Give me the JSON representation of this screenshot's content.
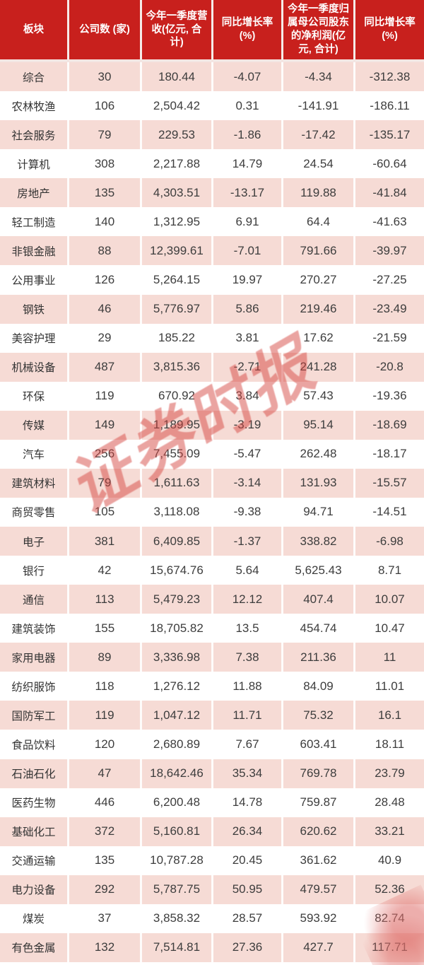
{
  "chart_data": {
    "type": "table",
    "title": "",
    "columns": [
      "板块",
      "公司数 (家)",
      "今年一季度营收(亿元, 合计)",
      "同比增长率(%)",
      "今年一季度归属母公司股东的净利润(亿元, 合计)",
      "同比增长率(%)"
    ],
    "rows": [
      [
        "综合",
        "30",
        "180.44",
        "-4.07",
        "-4.34",
        "-312.38"
      ],
      [
        "农林牧渔",
        "106",
        "2,504.42",
        "0.31",
        "-141.91",
        "-186.11"
      ],
      [
        "社会服务",
        "79",
        "229.53",
        "-1.86",
        "-17.42",
        "-135.17"
      ],
      [
        "计算机",
        "308",
        "2,217.88",
        "14.79",
        "24.54",
        "-60.64"
      ],
      [
        "房地产",
        "135",
        "4,303.51",
        "-13.17",
        "119.88",
        "-41.84"
      ],
      [
        "轻工制造",
        "140",
        "1,312.95",
        "6.91",
        "64.4",
        "-41.63"
      ],
      [
        "非银金融",
        "88",
        "12,399.61",
        "-7.01",
        "791.66",
        "-39.97"
      ],
      [
        "公用事业",
        "126",
        "5,264.15",
        "19.97",
        "270.27",
        "-27.25"
      ],
      [
        "钢铁",
        "46",
        "5,776.97",
        "5.86",
        "219.46",
        "-23.49"
      ],
      [
        "美容护理",
        "29",
        "185.22",
        "3.81",
        "17.62",
        "-21.59"
      ],
      [
        "机械设备",
        "487",
        "3,815.36",
        "-2.71",
        "241.28",
        "-20.8"
      ],
      [
        "环保",
        "119",
        "670.92",
        "3.84",
        "57.43",
        "-19.36"
      ],
      [
        "传媒",
        "149",
        "1,189.95",
        "-3.19",
        "95.14",
        "-18.69"
      ],
      [
        "汽车",
        "256",
        "7,455.09",
        "-5.47",
        "262.48",
        "-18.17"
      ],
      [
        "建筑材料",
        "79",
        "1,611.63",
        "-3.14",
        "131.93",
        "-15.57"
      ],
      [
        "商贸零售",
        "105",
        "3,118.08",
        "-9.38",
        "94.71",
        "-14.51"
      ],
      [
        "电子",
        "381",
        "6,409.85",
        "-1.37",
        "338.82",
        "-6.98"
      ],
      [
        "银行",
        "42",
        "15,674.76",
        "5.64",
        "5,625.43",
        "8.71"
      ],
      [
        "通信",
        "113",
        "5,479.23",
        "12.12",
        "407.4",
        "10.07"
      ],
      [
        "建筑装饰",
        "155",
        "18,705.82",
        "13.5",
        "454.74",
        "10.47"
      ],
      [
        "家用电器",
        "89",
        "3,336.98",
        "7.38",
        "211.36",
        "11"
      ],
      [
        "纺织服饰",
        "118",
        "1,276.12",
        "11.88",
        "84.09",
        "11.01"
      ],
      [
        "国防军工",
        "119",
        "1,047.12",
        "11.71",
        "75.32",
        "16.1"
      ],
      [
        "食品饮料",
        "120",
        "2,680.89",
        "7.67",
        "603.41",
        "18.11"
      ],
      [
        "石油石化",
        "47",
        "18,642.46",
        "35.34",
        "769.78",
        "23.79"
      ],
      [
        "医药生物",
        "446",
        "6,200.48",
        "14.78",
        "759.87",
        "28.48"
      ],
      [
        "基础化工",
        "372",
        "5,160.81",
        "26.34",
        "620.62",
        "33.21"
      ],
      [
        "交通运输",
        "135",
        "10,787.28",
        "20.45",
        "361.62",
        "40.9"
      ],
      [
        "电力设备",
        "292",
        "5,787.75",
        "50.95",
        "479.57",
        "52.36"
      ],
      [
        "煤炭",
        "37",
        "3,858.32",
        "28.57",
        "593.92",
        "82.74"
      ],
      [
        "有色金属",
        "132",
        "7,514.81",
        "27.36",
        "427.7",
        "117.71"
      ]
    ],
    "layout_hints": {
      "header_rows": 1,
      "alternating_row_shading": true,
      "first_shaded_row_index": 0
    }
  },
  "watermark": {
    "text": "证券时报"
  },
  "colors": {
    "header_bg": "#c8201d",
    "header_text": "#ffffff",
    "row_pink": "#f6dbd5",
    "row_white": "#ffffff",
    "body_text": "#3d3d3d",
    "watermark_red": "#d5423d"
  }
}
